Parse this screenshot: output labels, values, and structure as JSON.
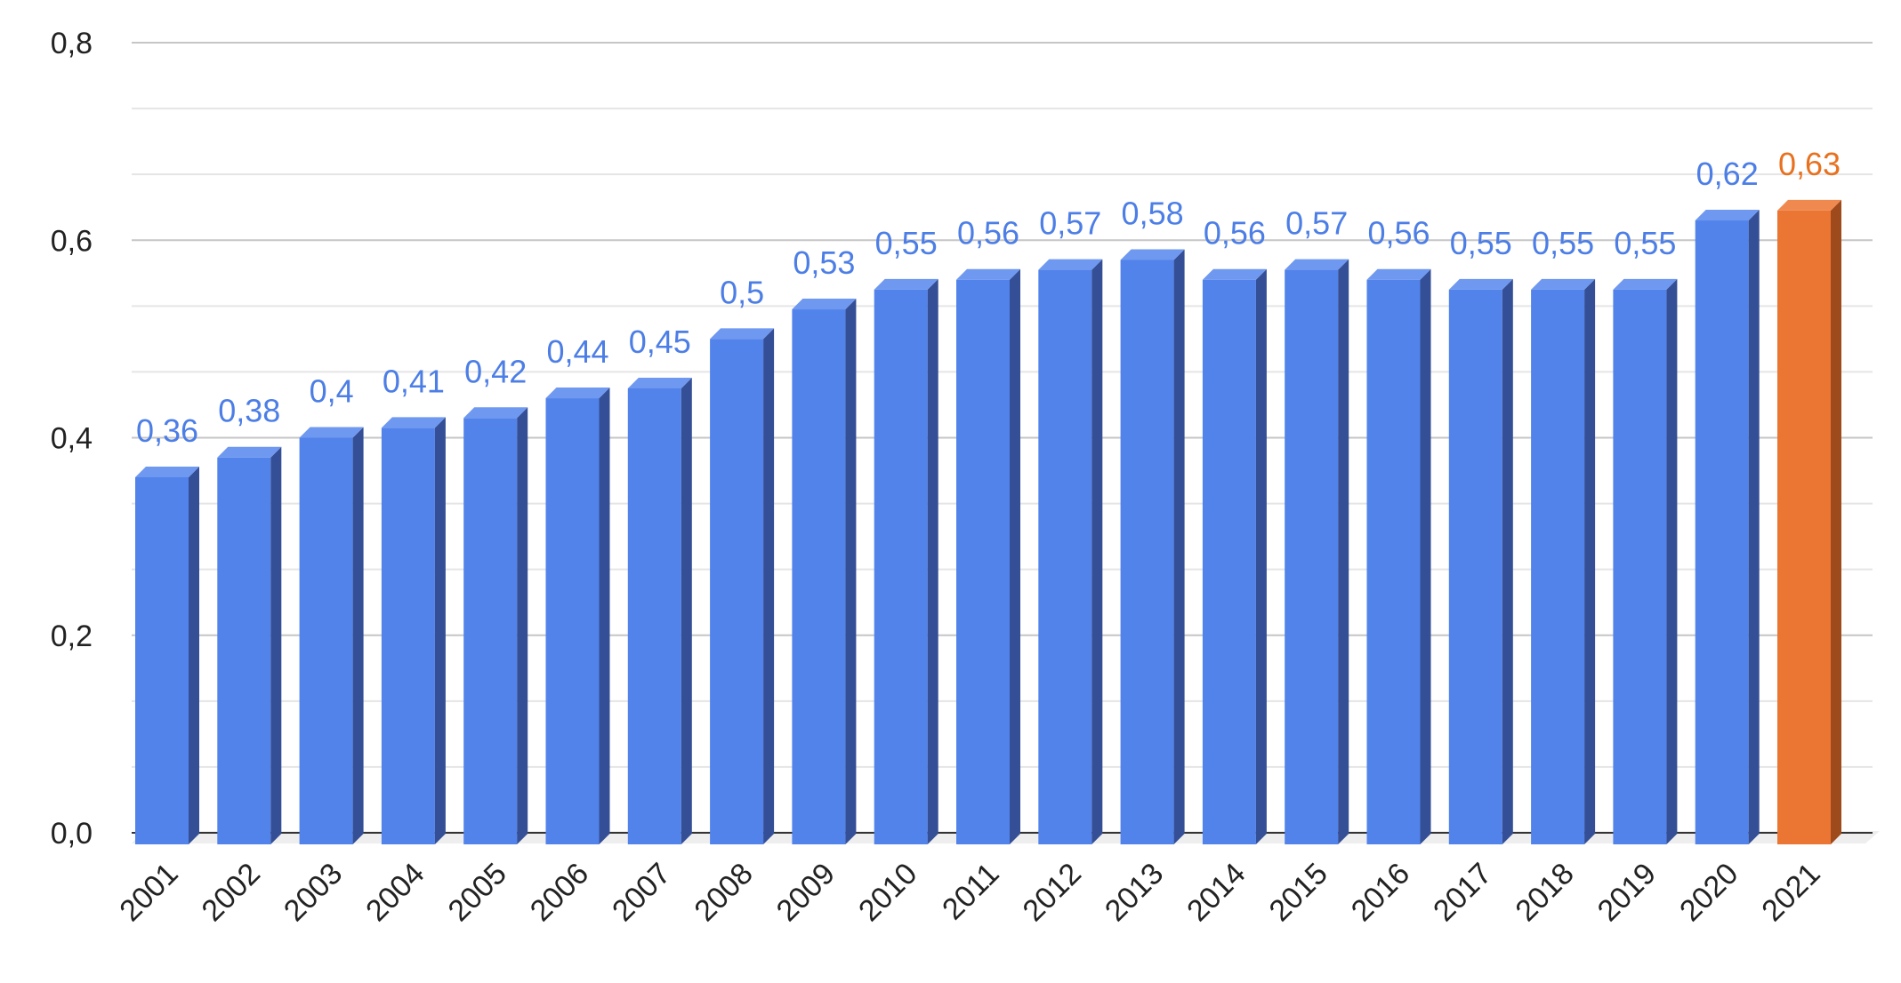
{
  "chart_data": {
    "type": "bar",
    "style": "3d-columns",
    "categories": [
      "2001",
      "2002",
      "2003",
      "2004",
      "2005",
      "2006",
      "2007",
      "2008",
      "2009",
      "2010",
      "2011",
      "2012",
      "2013",
      "2014",
      "2015",
      "2016",
      "2017",
      "2018",
      "2019",
      "2020",
      "2021"
    ],
    "values": [
      0.36,
      0.38,
      0.4,
      0.41,
      0.42,
      0.44,
      0.45,
      0.5,
      0.53,
      0.55,
      0.56,
      0.57,
      0.58,
      0.56,
      0.57,
      0.56,
      0.55,
      0.55,
      0.55,
      0.62,
      0.63
    ],
    "data_labels": [
      "0,36",
      "0,38",
      "0,4",
      "0,41",
      "0,42",
      "0,44",
      "0,45",
      "0,5",
      "0,53",
      "0,55",
      "0,56",
      "0,57",
      "0,58",
      "0,56",
      "0,57",
      "0,56",
      "0,55",
      "0,55",
      "0,55",
      "0,62",
      "0,63"
    ],
    "title": "",
    "xlabel": "",
    "ylabel": "",
    "ylim": [
      0,
      0.8
    ],
    "y_ticks": [
      0,
      0.2,
      0.4,
      0.6,
      0.8
    ],
    "y_tick_labels": [
      "0,0",
      "0,2",
      "0,4",
      "0,6",
      "0,8"
    ],
    "grid": true,
    "legend": "none",
    "highlight_index": 20,
    "colors": {
      "bar": "#5283eb",
      "bar_side": "#344f96",
      "bar_top": "#6f98f0",
      "highlight": "#eb7532",
      "highlight_side": "#9e4a1c",
      "highlight_top": "#f0894f",
      "label": "#4c7ee6",
      "highlight_label": "#e8711f",
      "grid_major": "#c6c6c6",
      "grid_minor": "#e5e5e5",
      "axis": "#333333",
      "floor": "#eeeeee"
    }
  }
}
